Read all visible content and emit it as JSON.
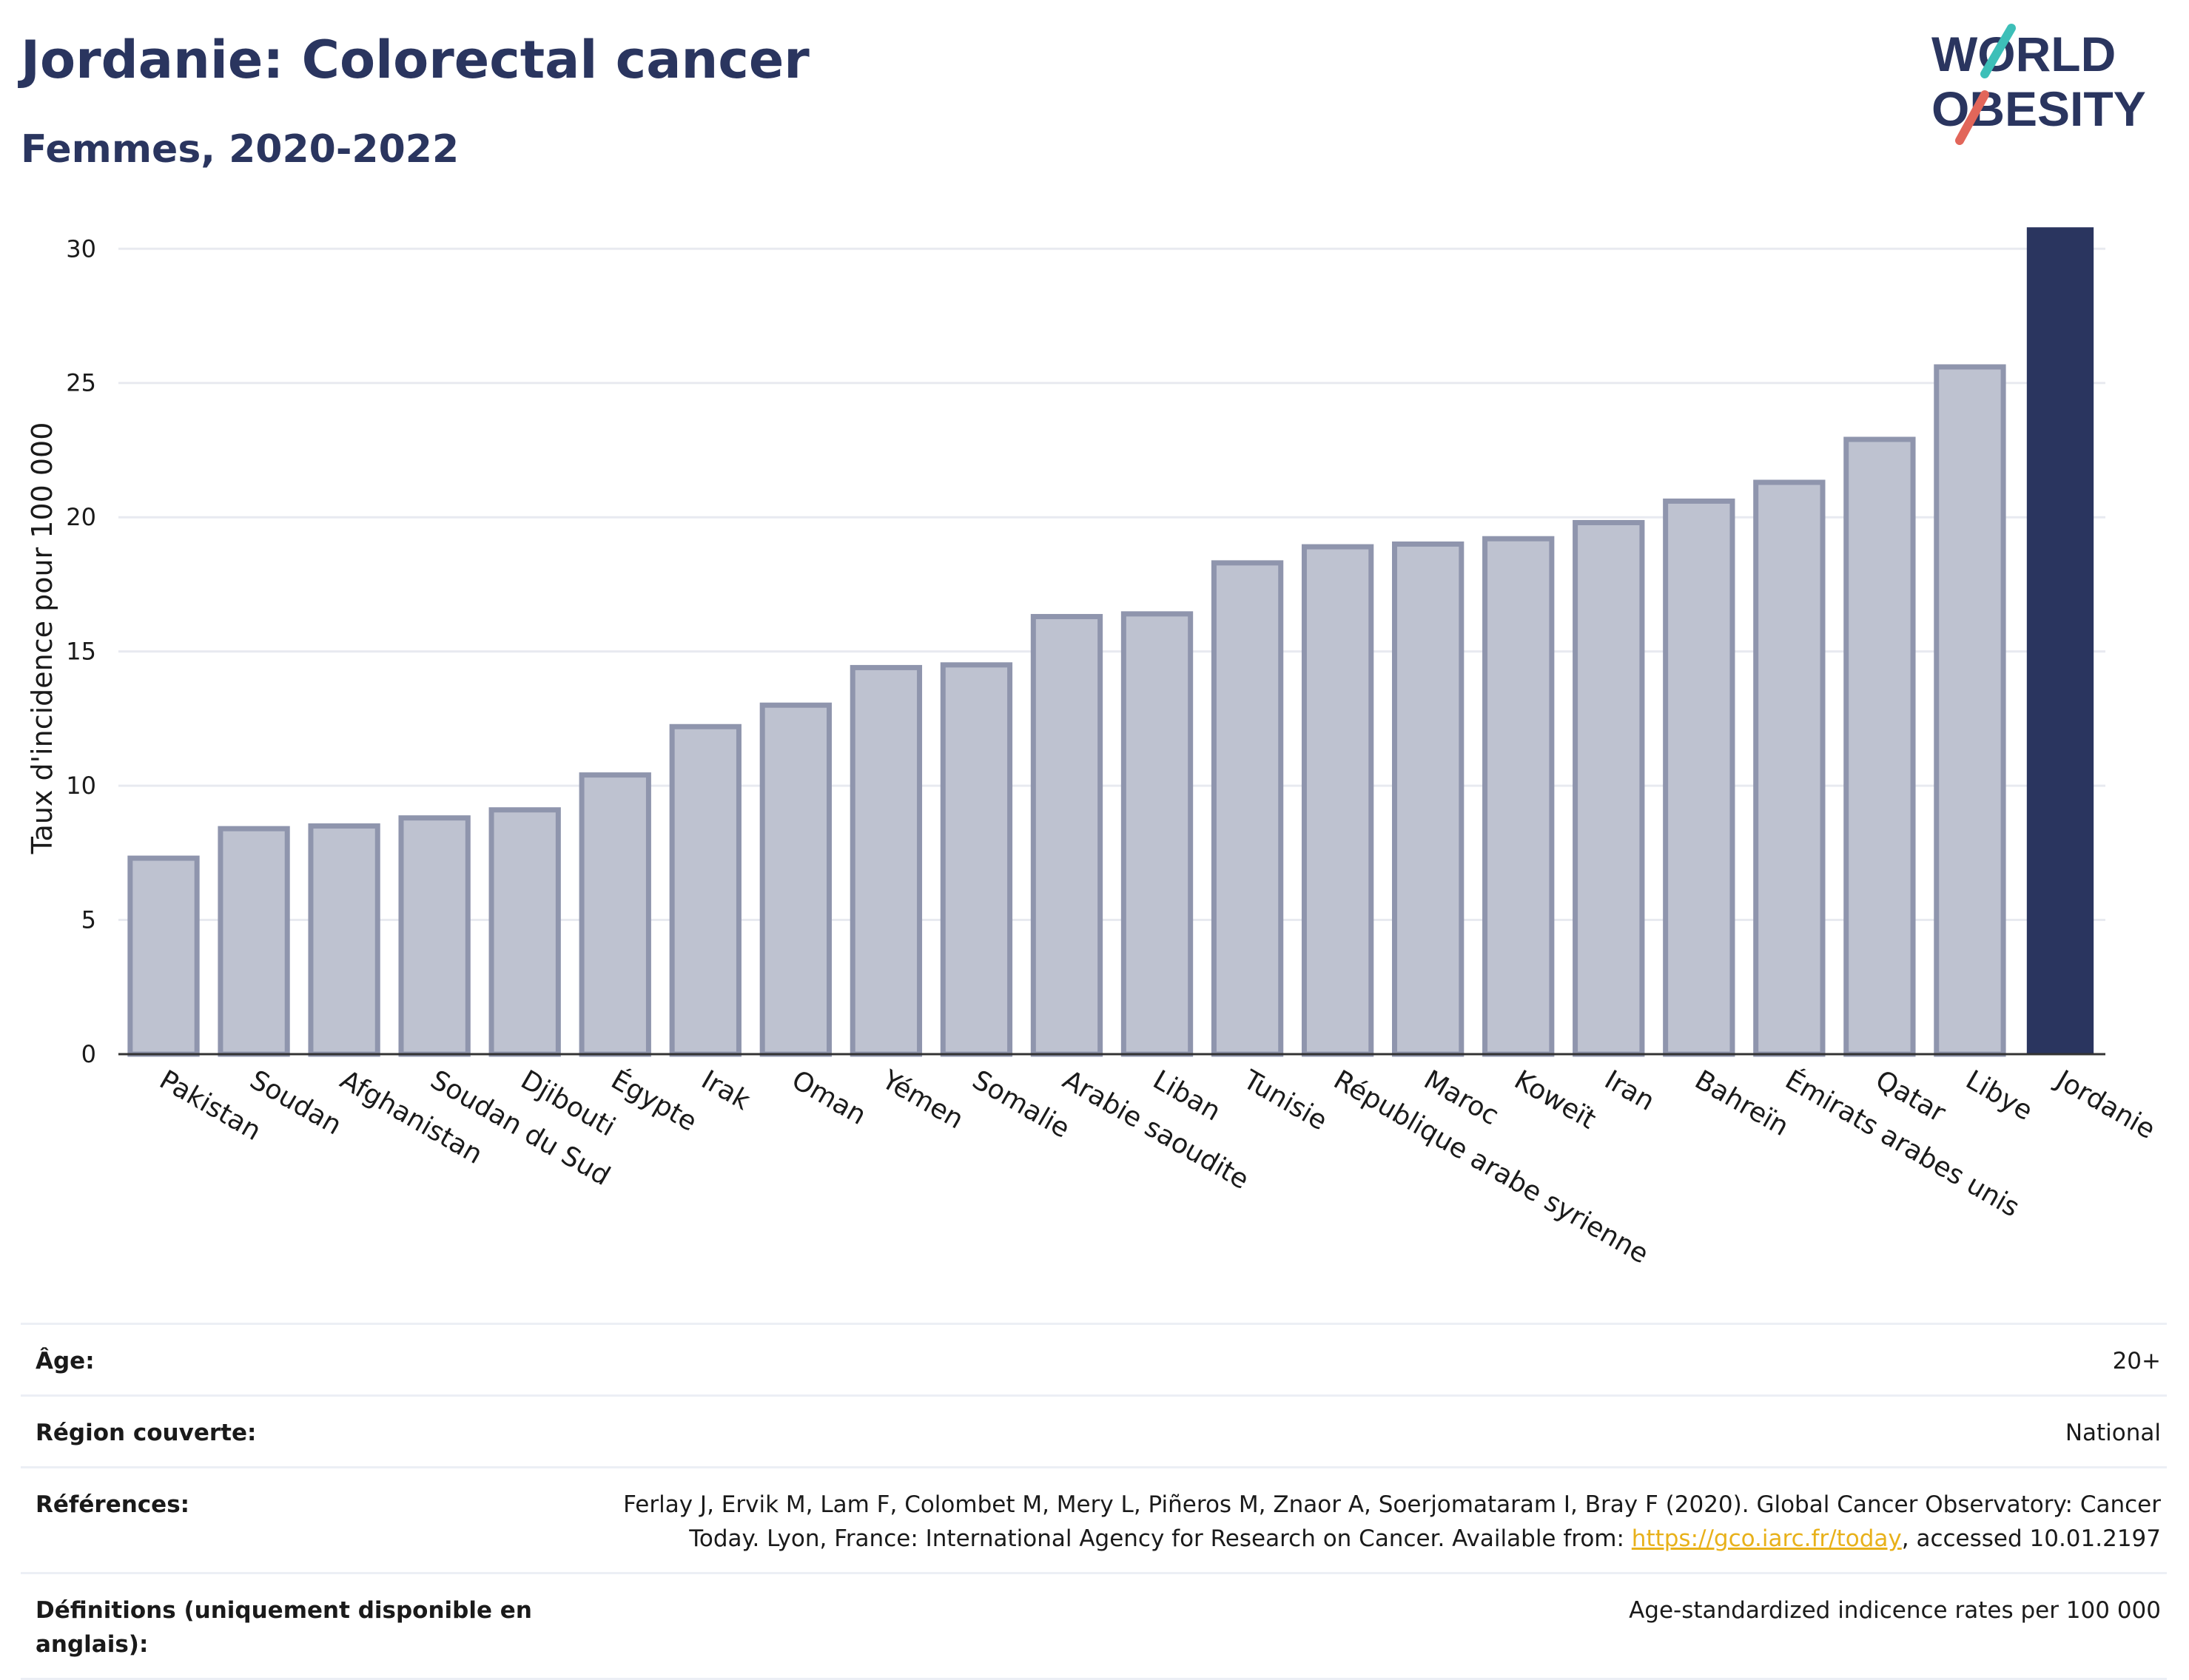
{
  "header": {
    "title": "Jordanie: Colorectal cancer",
    "subtitle": "Femmes, 2020-2022"
  },
  "logo": {
    "line1": "WORLD",
    "line2": "OBESITY",
    "accent_color": "#3dbfb8",
    "slash_color": "#e2665a"
  },
  "colors": {
    "bar": "#bec2d0",
    "bar_edge": "#8f95ad",
    "highlight": "#2a355f",
    "grid": "#e8eaf0",
    "text": "#1a1a1a"
  },
  "chart_data": {
    "type": "bar",
    "ylabel": "Taux d'incidence pour 100 000",
    "xlabel": "",
    "ylim": [
      0,
      31
    ],
    "yticks": [
      0,
      5,
      10,
      15,
      20,
      25,
      30
    ],
    "grid": true,
    "highlight": "Jordanie",
    "categories": [
      "Pakistan",
      "Soudan",
      "Afghanistan",
      "Soudan du Sud",
      "Djibouti",
      "Égypte",
      "Irak",
      "Oman",
      "Yémen",
      "Somalie",
      "Arabie saoudite",
      "Liban",
      "Tunisie",
      "République arabe syrienne",
      "Maroc",
      "Koweït",
      "Iran",
      "Bahreïn",
      "Émirats arabes unis",
      "Qatar",
      "Libye",
      "Jordanie"
    ],
    "values": [
      7.3,
      8.4,
      8.5,
      8.8,
      9.1,
      10.4,
      12.2,
      13.0,
      14.4,
      14.5,
      16.3,
      16.4,
      18.3,
      18.9,
      19.0,
      19.2,
      19.8,
      20.6,
      21.3,
      22.9,
      25.6,
      30.8
    ]
  },
  "meta": {
    "age_label": "Âge:",
    "age_value": "20+",
    "region_label": "Région couverte:",
    "region_value": "National",
    "references_label": "Références:",
    "references_text": "Ferlay J, Ervik M, Lam F, Colombet M, Mery L, Piñeros M, Znaor A, Soerjomataram I, Bray F (2020). Global Cancer Observatory: Cancer Today. Lyon, France: International Agency for Research on Cancer. Available from: ",
    "references_link": "https://gco.iarc.fr/today",
    "references_suffix": ", accessed 10.01.2197",
    "definitions_label": "Définitions (uniquement disponible en anglais):",
    "definitions_value": "Age-standardized indicence rates per 100 000"
  }
}
